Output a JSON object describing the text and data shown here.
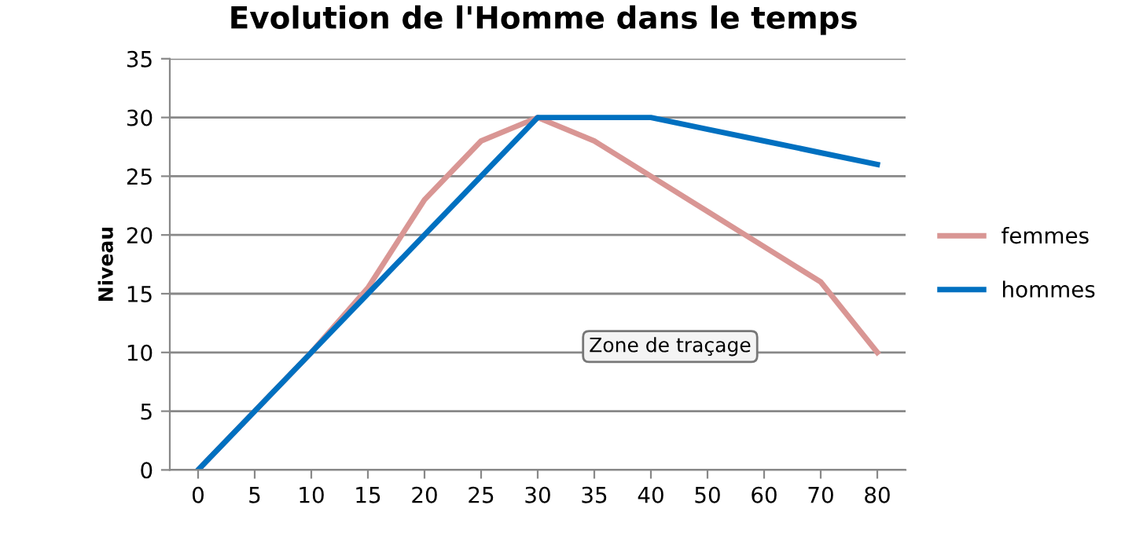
{
  "chart_data": {
    "type": "line",
    "title": "Evolution de l'Homme dans le temps",
    "ylabel": "Niveau",
    "categories": [
      "0",
      "5",
      "10",
      "15",
      "20",
      "25",
      "30",
      "35",
      "40",
      "50",
      "60",
      "70",
      "80"
    ],
    "series": [
      {
        "name": "femmes",
        "color": "#d99694",
        "values": [
          0,
          5,
          10,
          15.5,
          23,
          28,
          30,
          28,
          25,
          22,
          19,
          16,
          10
        ]
      },
      {
        "name": "hommes",
        "color": "#0070c0",
        "values": [
          0,
          5,
          10,
          15,
          20,
          25,
          30,
          30,
          30,
          29,
          28,
          27,
          26
        ]
      }
    ],
    "ylim": [
      0,
      35
    ],
    "yticks": [
      0,
      5,
      10,
      15,
      20,
      25,
      30,
      35
    ],
    "grid": "y",
    "legend": "right",
    "marker": "none",
    "line_style": "solid",
    "annotations": [
      "Zone de traçage"
    ]
  }
}
